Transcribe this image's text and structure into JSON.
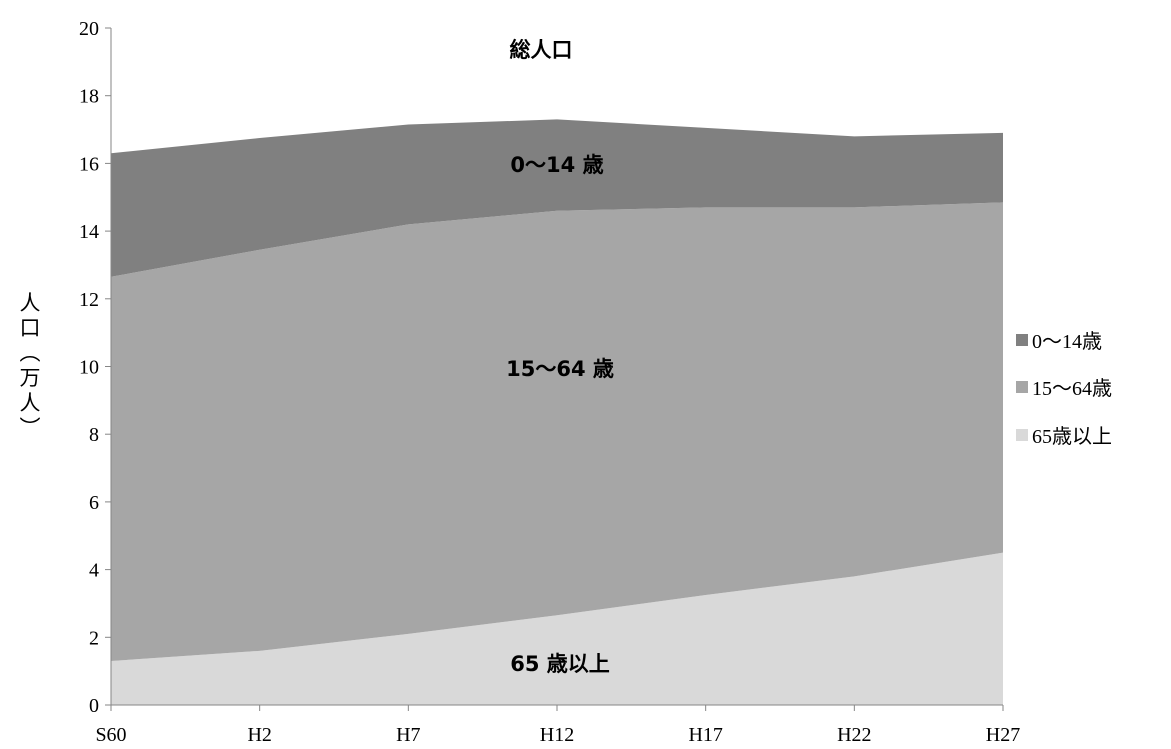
{
  "chart_data": {
    "type": "area",
    "stacked": true,
    "categories": [
      "S60",
      "H2",
      "H7",
      "H12",
      "H17",
      "H22",
      "H27"
    ],
    "ylabel": "人口(万人)",
    "ylim": [
      0,
      20
    ],
    "yticks": [
      0,
      2,
      4,
      6,
      8,
      10,
      12,
      14,
      16,
      18,
      20
    ],
    "grid": false,
    "legend_position": "right",
    "series": [
      {
        "name": "65歳以上",
        "values": [
          1.3,
          1.6,
          2.1,
          2.65,
          3.25,
          3.8,
          4.5
        ],
        "color": "#d9d9d9"
      },
      {
        "name": "15〜64歳",
        "values": [
          11.35,
          11.85,
          12.1,
          11.95,
          11.45,
          10.9,
          10.35
        ],
        "color": "#a6a6a6"
      },
      {
        "name": "0〜14歳",
        "values": [
          3.65,
          3.3,
          2.95,
          2.7,
          2.35,
          2.1,
          2.05
        ],
        "color": "#808080"
      }
    ],
    "legend": [
      "0〜14歳",
      "15〜64歳",
      "65歳以上"
    ],
    "annotations": {
      "total": "総人口",
      "young": "0〜14 歳",
      "working": "15〜64 歳",
      "elderly": "65 歳以上"
    }
  }
}
